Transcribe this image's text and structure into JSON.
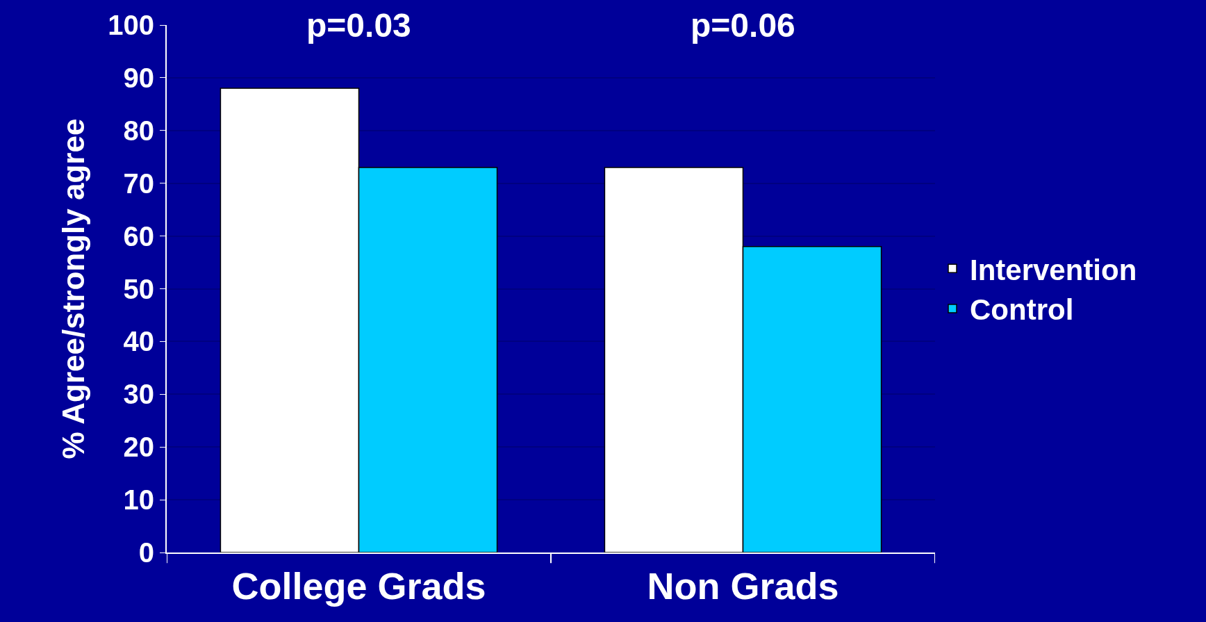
{
  "chart_data": {
    "type": "bar",
    "ylabel": "% Agree/strongly agree",
    "categories": [
      "College Grads",
      "Non Grads"
    ],
    "series": [
      {
        "name": "Intervention",
        "color": "#ffffff",
        "values": [
          88,
          73
        ]
      },
      {
        "name": "Control",
        "color": "#00ccff",
        "values": [
          73,
          58
        ]
      }
    ],
    "ylim": [
      0,
      100
    ],
    "yticks": [
      0,
      10,
      20,
      30,
      40,
      50,
      60,
      70,
      80,
      90,
      100
    ],
    "grid": "y",
    "legend": "right",
    "annotations": [
      "p=0.03",
      "p=0.06"
    ]
  }
}
